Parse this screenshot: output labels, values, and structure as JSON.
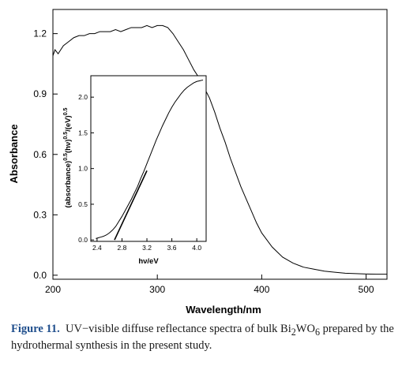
{
  "caption": {
    "label": "Figure 11.",
    "text_before": "UV−visible diffuse reflectance spectra of bulk Bi",
    "sub1": "2",
    "text_mid": "WO",
    "sub2": "6",
    "text_after": " prepared by the hydrothermal synthesis in the present study."
  },
  "chart_data": [
    {
      "type": "line",
      "xlabel": "Wavelength/nm",
      "ylabel": "Absorbance",
      "xlim": [
        200,
        520
      ],
      "ylim": [
        -0.02,
        1.32
      ],
      "xticks": [
        "200",
        "300",
        "400",
        "500"
      ],
      "yticks": [
        "0.0",
        "0.3",
        "0.6",
        "0.9",
        "1.2"
      ],
      "series": [
        {
          "x": [
            200,
            202,
            205,
            210,
            215,
            220,
            225,
            230,
            235,
            240,
            245,
            250,
            255,
            260,
            265,
            270,
            275,
            280,
            285,
            290,
            295,
            300,
            305,
            310,
            315,
            320,
            325,
            330,
            335,
            340,
            345,
            350,
            355,
            360,
            365,
            370,
            375,
            380,
            385,
            390,
            395,
            400,
            410,
            420,
            430,
            440,
            450,
            460,
            470,
            480,
            490,
            500,
            510,
            520
          ],
          "y": [
            1.09,
            1.12,
            1.1,
            1.14,
            1.16,
            1.18,
            1.19,
            1.19,
            1.2,
            1.2,
            1.21,
            1.21,
            1.21,
            1.22,
            1.21,
            1.22,
            1.23,
            1.23,
            1.23,
            1.24,
            1.23,
            1.24,
            1.24,
            1.23,
            1.2,
            1.16,
            1.12,
            1.07,
            1.02,
            0.98,
            0.93,
            0.88,
            0.81,
            0.73,
            0.66,
            0.58,
            0.51,
            0.44,
            0.38,
            0.32,
            0.26,
            0.21,
            0.14,
            0.09,
            0.06,
            0.04,
            0.03,
            0.02,
            0.015,
            0.01,
            0.008,
            0.006,
            0.005,
            0.005
          ]
        }
      ]
    },
    {
      "type": "line",
      "xlabel": "hν/eV",
      "ylabel": "(absorbance)^0.5(hν)^0.5/(eV)^0.5",
      "xlim": [
        2.3,
        4.15
      ],
      "ylim": [
        -0.02,
        2.3
      ],
      "xticks": [
        "2.4",
        "2.8",
        "3.2",
        "3.6",
        "4.0"
      ],
      "yticks": [
        "0.0",
        "0.5",
        "1.0",
        "1.5",
        "2.0"
      ],
      "series": [
        {
          "x": [
            2.38,
            2.42,
            2.46,
            2.5,
            2.55,
            2.6,
            2.65,
            2.7,
            2.75,
            2.8,
            2.85,
            2.9,
            2.95,
            3.0,
            3.05,
            3.1,
            3.15,
            3.2,
            3.25,
            3.3,
            3.35,
            3.4,
            3.45,
            3.5,
            3.55,
            3.6,
            3.65,
            3.7,
            3.75,
            3.8,
            3.85,
            3.9,
            3.95,
            4.0,
            4.05,
            4.1
          ],
          "y": [
            0.02,
            0.03,
            0.04,
            0.05,
            0.07,
            0.1,
            0.14,
            0.19,
            0.26,
            0.33,
            0.41,
            0.49,
            0.57,
            0.66,
            0.75,
            0.86,
            0.96,
            1.07,
            1.18,
            1.29,
            1.4,
            1.5,
            1.6,
            1.69,
            1.78,
            1.86,
            1.93,
            1.99,
            2.05,
            2.1,
            2.14,
            2.17,
            2.2,
            2.22,
            2.23,
            2.24
          ]
        },
        {
          "x": [
            2.68,
            3.2
          ],
          "y": [
            0.0,
            0.97
          ]
        }
      ]
    }
  ]
}
